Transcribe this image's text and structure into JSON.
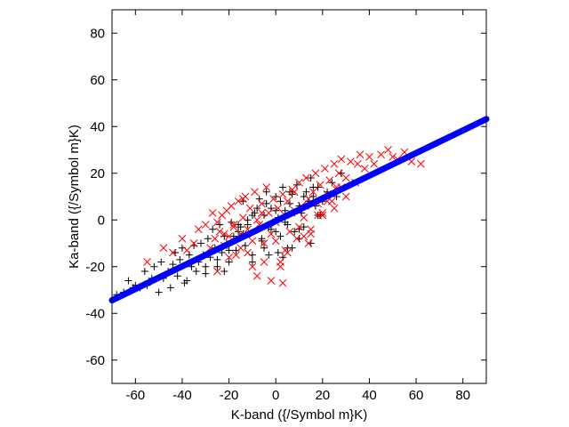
{
  "chart_data": {
    "type": "scatter",
    "xlabel": "K-band ({/Symbol m}K)",
    "ylabel": "Ka-band ({/Symbol m}K)",
    "xlim": [
      -70,
      90
    ],
    "ylim": [
      -70,
      90
    ],
    "xticks": [
      -60,
      -40,
      -20,
      0,
      20,
      40,
      60,
      80
    ],
    "yticks": [
      -60,
      -40,
      -20,
      0,
      20,
      40,
      60,
      80
    ],
    "xtick_labels": [
      "-60",
      "-40",
      "-20",
      "0",
      "20",
      "40",
      "60",
      "80"
    ],
    "ytick_labels": [
      "-60",
      "-40",
      "-20",
      "0",
      "20",
      "40",
      "60",
      "80"
    ],
    "grid": false,
    "legend": "none",
    "series": [
      {
        "marker": "plus",
        "color": "#000000",
        "x": [
          -68,
          -65,
          -63,
          -61,
          -60,
          -58,
          -56,
          -55,
          -53,
          -52,
          -50,
          -49,
          -48,
          -46,
          -45,
          -44,
          -43,
          -42,
          -41,
          -40,
          -39,
          -38,
          -37,
          -36,
          -35,
          -34,
          -33,
          -32,
          -31,
          -30,
          -29,
          -28,
          -27,
          -26,
          -25,
          -24,
          -23,
          -22,
          -21,
          -20,
          -19,
          -18,
          -17,
          -16,
          -15,
          -14,
          -13,
          -12,
          -11,
          -10,
          -9,
          -8,
          -7,
          -6,
          -5,
          -4,
          -3,
          -2,
          -1,
          0,
          1,
          2,
          3,
          4,
          5,
          6,
          7,
          8,
          9,
          10,
          11,
          12,
          13,
          14,
          15,
          16,
          17,
          18,
          19,
          20,
          22,
          24,
          26,
          28,
          -14,
          -12,
          -10,
          -8,
          -6,
          -4,
          -2,
          0,
          2,
          4,
          6,
          8,
          10,
          12,
          14,
          16,
          18,
          20,
          -20,
          -18,
          -16,
          -10,
          -5,
          0,
          5,
          10,
          15,
          -30,
          -25,
          -22,
          -3,
          1,
          3,
          7
        ],
        "y": [
          -32,
          -31,
          -26,
          -29,
          -28,
          -29,
          -22,
          -28,
          -25,
          -20,
          -31,
          -18,
          -25,
          -22,
          -29,
          -19,
          -14,
          -24,
          -17,
          -12,
          -27,
          -26,
          -15,
          -20,
          -11,
          -22,
          -18,
          -10,
          -15,
          -23,
          -8,
          -16,
          -4,
          -12,
          -20,
          -2,
          -14,
          -7,
          -10,
          -18,
          -1,
          -9,
          -13,
          -5,
          -3,
          8,
          -11,
          0,
          -6,
          -15,
          3,
          -4,
          9,
          -8,
          2,
          12,
          -3,
          5,
          -1,
          10,
          1,
          -7,
          14,
          4,
          -2,
          7,
          11,
          -5,
          15,
          6,
          3,
          -3,
          12,
          8,
          18,
          10,
          6,
          14,
          2,
          9,
          12,
          16,
          10,
          20,
          -6,
          -2,
          2,
          5,
          -9,
          7,
          -4,
          4,
          8,
          -1,
          12,
          3,
          -4,
          10,
          6,
          14,
          2,
          8,
          -13,
          -7,
          -2,
          -18,
          -12,
          -5,
          -12,
          -8,
          -10,
          -20,
          -17,
          -22,
          -15,
          -14,
          -16,
          -12
        ]
      },
      {
        "marker": "x",
        "color": "#ff0000",
        "x": [
          -55,
          -48,
          -44,
          -40,
          -38,
          -35,
          -33,
          -30,
          -28,
          -27,
          -26,
          -25,
          -24,
          -23,
          -22,
          -21,
          -20,
          -19,
          -18,
          -17,
          -16,
          -15,
          -14,
          -13,
          -12,
          -11,
          -10,
          -9,
          -8,
          -7,
          -6,
          -5,
          -4,
          -3,
          -2,
          -1,
          0,
          1,
          2,
          3,
          4,
          5,
          6,
          7,
          8,
          9,
          10,
          11,
          12,
          13,
          14,
          15,
          16,
          17,
          18,
          19,
          20,
          21,
          22,
          23,
          24,
          25,
          26,
          27,
          28,
          30,
          32,
          34,
          36,
          38,
          40,
          42,
          45,
          48,
          50,
          52,
          55,
          58,
          62,
          -20,
          -15,
          -10,
          -5,
          0,
          5,
          10,
          15,
          20,
          25,
          30,
          -25,
          -18,
          -12,
          -6,
          2,
          8,
          14,
          22,
          28,
          35,
          -22,
          -14,
          -8,
          -2,
          4,
          12,
          18,
          26,
          3
        ],
        "y": [
          -18,
          -12,
          -14,
          -8,
          -13,
          -10,
          -4,
          -2,
          -12,
          3,
          -8,
          -1,
          -5,
          2,
          -11,
          4,
          -7,
          6,
          -3,
          -15,
          8,
          -6,
          1,
          10,
          -4,
          5,
          -9,
          12,
          0,
          -2,
          7,
          -10,
          14,
          3,
          -6,
          9,
          -1,
          5,
          -18,
          11,
          2,
          8,
          -5,
          13,
          4,
          -8,
          16,
          6,
          1,
          18,
          9,
          -4,
          12,
          20,
          7,
          15,
          3,
          22,
          11,
          17,
          8,
          24,
          14,
          20,
          26,
          18,
          25,
          16,
          28,
          22,
          27,
          24,
          28,
          30,
          27,
          26,
          29,
          25,
          24,
          -16,
          -12,
          -20,
          -18,
          -9,
          -14,
          -3,
          -6,
          2,
          5,
          10,
          -22,
          -2,
          -14,
          3,
          -20,
          12,
          -10,
          8,
          14,
          24,
          -6,
          9,
          -24,
          -26,
          -13,
          -7,
          2,
          13,
          -27
        ]
      },
      {
        "marker": "line",
        "color": "#0000ff",
        "x": [
          -70,
          -50,
          -30,
          -10,
          10,
          30,
          50,
          70,
          90
        ],
        "y": [
          -34.4,
          -24.7,
          -15.0,
          -5.3,
          4.4,
          14.1,
          23.8,
          33.5,
          43.2
        ]
      }
    ]
  }
}
